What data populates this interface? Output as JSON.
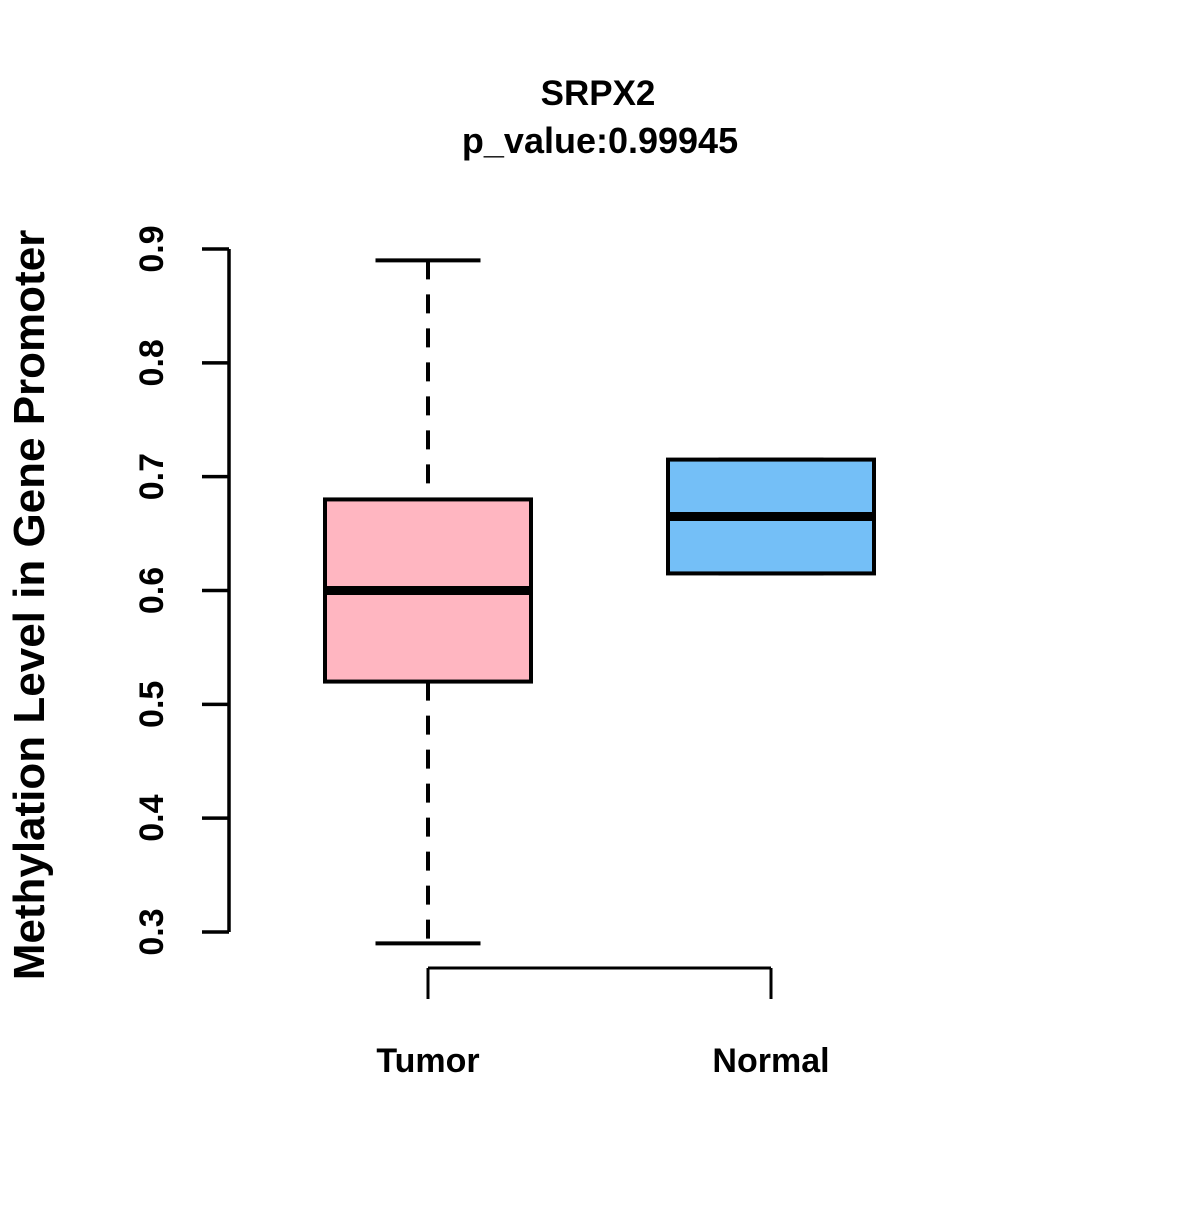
{
  "figure": {
    "background_color": "#FFFFFF",
    "text_color": "#000000"
  },
  "chart_data": {
    "type": "boxplot",
    "title": "SRPX2",
    "subtitle": "p_value:0.99945",
    "ylabel": "Methylation Level in Gene Promoter",
    "xlabel": "",
    "ylim": [
      0.3,
      0.9
    ],
    "yticks": [
      0.3,
      0.4,
      0.5,
      0.6,
      0.7,
      0.8,
      0.9
    ],
    "ytick_labels": [
      "0.3",
      "0.4",
      "0.5",
      "0.6",
      "0.7",
      "0.8",
      "0.9"
    ],
    "categories": [
      "Tumor",
      "Normal"
    ],
    "grid": false,
    "legend": null,
    "series": [
      {
        "name": "Tumor",
        "fill_color": "#FFB6C1",
        "border_color": "#000000",
        "whisker_low": 0.29,
        "q1": 0.52,
        "median": 0.6,
        "q3": 0.68,
        "whisker_high": 0.89
      },
      {
        "name": "Normal",
        "fill_color": "#74BFF7",
        "border_color": "#000000",
        "whisker_low": 0.615,
        "q1": 0.615,
        "median": 0.665,
        "q3": 0.715,
        "whisker_high": 0.715
      }
    ]
  }
}
